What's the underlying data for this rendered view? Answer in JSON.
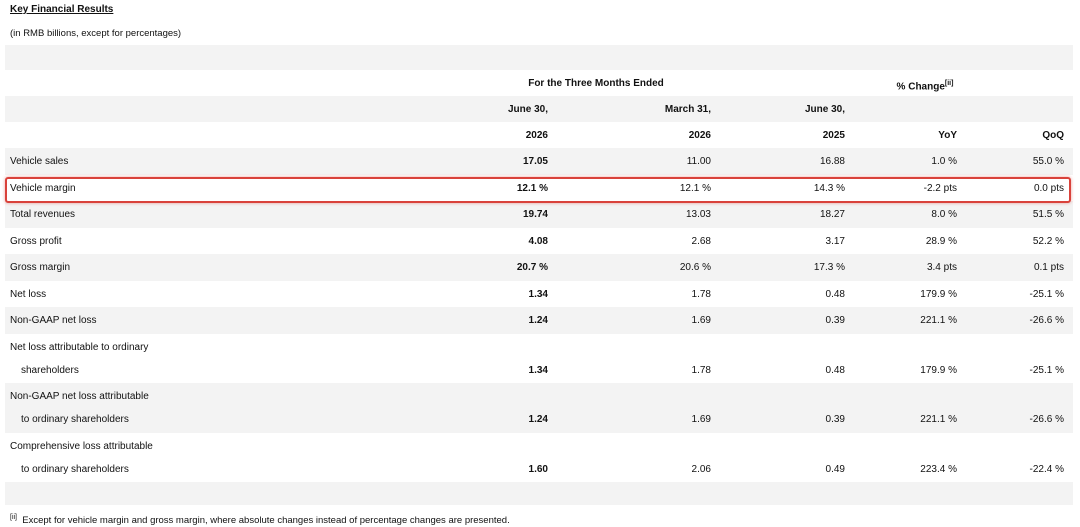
{
  "title": "Key Financial Results",
  "subtitle": "(in RMB billions, except for percentages)",
  "header": {
    "period_group": "For the Three Months Ended",
    "change_group": {
      "text": "% Change",
      "sup": "[ii]"
    },
    "dates": [
      "June 30,",
      "March 31,",
      "June 30,"
    ],
    "years": [
      "2026",
      "2026",
      "2025"
    ],
    "change_columns": [
      "YoY",
      "QoQ"
    ]
  },
  "rows": [
    {
      "label": [
        "Vehicle sales"
      ],
      "values": [
        "17.05",
        "11.00",
        "16.88",
        "1.0 %",
        "55.0 %"
      ]
    },
    {
      "label": [
        "Vehicle margin"
      ],
      "values": [
        "12.1 %",
        "12.1 %",
        "14.3 %",
        "-2.2 pts",
        "0.0 pts"
      ]
    },
    {
      "label": [
        "Total revenues"
      ],
      "values": [
        "19.74",
        "13.03",
        "18.27",
        "8.0 %",
        "51.5 %"
      ]
    },
    {
      "label": [
        "Gross profit"
      ],
      "values": [
        "4.08",
        "2.68",
        "3.17",
        "28.9 %",
        "52.2 %"
      ]
    },
    {
      "label": [
        "Gross margin"
      ],
      "values": [
        "20.7 %",
        "20.6 %",
        "17.3 %",
        "3.4 pts",
        "0.1 pts"
      ]
    },
    {
      "label": [
        "Net loss"
      ],
      "values": [
        "1.34",
        "1.78",
        "0.48",
        "179.9 %",
        "-25.1 %"
      ]
    },
    {
      "label": [
        "Non-GAAP net loss"
      ],
      "values": [
        "1.24",
        "1.69",
        "0.39",
        "221.1 %",
        "-26.6 %"
      ]
    },
    {
      "label": [
        "Net loss attributable to ordinary",
        "shareholders"
      ],
      "values": [
        "1.34",
        "1.78",
        "0.48",
        "179.9 %",
        "-25.1 %"
      ]
    },
    {
      "label": [
        "Non-GAAP net loss attributable",
        "to ordinary shareholders"
      ],
      "values": [
        "1.24",
        "1.69",
        "0.39",
        "221.1 %",
        "-26.6 %"
      ]
    },
    {
      "label": [
        "Comprehensive loss attributable",
        "to ordinary shareholders"
      ],
      "values": [
        "1.60",
        "2.06",
        "0.49",
        "223.4 %",
        "-22.4 %"
      ]
    }
  ],
  "footnote": {
    "marker": "[ii]",
    "text": "Except for vehicle margin and gross margin, where absolute changes instead of percentage changes are presented."
  }
}
